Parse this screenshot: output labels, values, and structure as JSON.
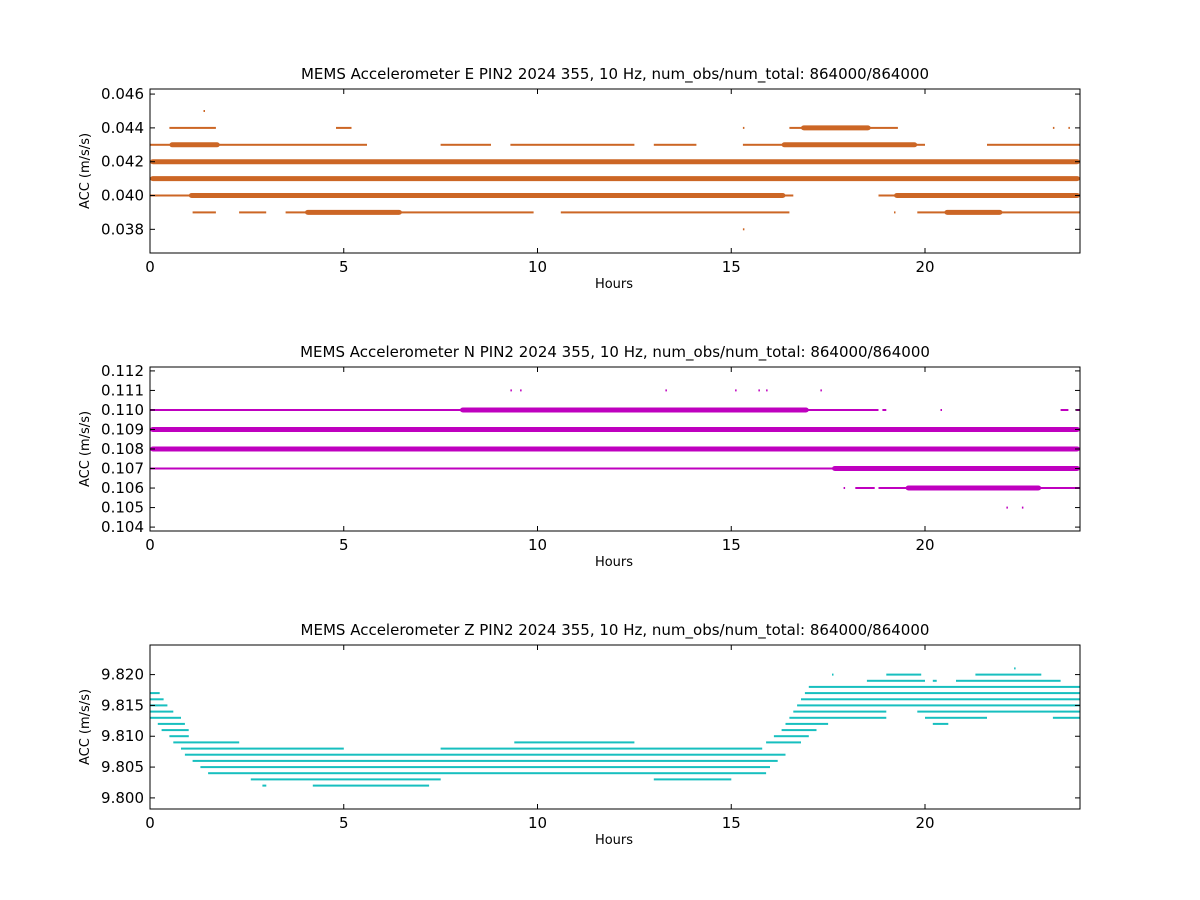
{
  "chart_data": [
    {
      "type": "scatter",
      "title": "MEMS Accelerometer E PIN2 2024 355, 10 Hz, num_obs/num_total: 864000/864000",
      "xlabel": "Hours",
      "ylabel": "ACC (m/s/s)",
      "xlim": [
        0,
        24
      ],
      "ylim": [
        0.0366,
        0.0463
      ],
      "xticks": [
        0,
        5,
        10,
        15,
        20
      ],
      "yticks": [
        0.038,
        0.04,
        0.042,
        0.044,
        0.046
      ],
      "ytick_labels": [
        "0.038",
        "0.040",
        "0.042",
        "0.044",
        "0.046"
      ],
      "color": "#cc6625",
      "series": [
        {
          "level": 0.045,
          "spans": [
            [
              1.38,
              1.4
            ]
          ],
          "dense": []
        },
        {
          "level": 0.044,
          "spans": [
            [
              0.5,
              1.7
            ],
            [
              4.8,
              5.2
            ],
            [
              15.3,
              15.32
            ],
            [
              16.5,
              19.3
            ],
            [
              23.3,
              23.32
            ],
            [
              23.7,
              23.72
            ]
          ],
          "dense": [
            [
              16.8,
              18.6
            ]
          ]
        },
        {
          "level": 0.043,
          "spans": [
            [
              0,
              5.6
            ],
            [
              7.5,
              8.8
            ],
            [
              9.3,
              12.5
            ],
            [
              13.0,
              14.1
            ],
            [
              15.3,
              20.0
            ],
            [
              21.6,
              24
            ]
          ],
          "dense": [
            [
              0.5,
              1.8
            ],
            [
              16.3,
              19.8
            ]
          ]
        },
        {
          "level": 0.042,
          "spans": [
            [
              0,
              24
            ]
          ],
          "dense": [
            [
              0,
              24
            ]
          ]
        },
        {
          "level": 0.041,
          "spans": [
            [
              0,
              24
            ]
          ],
          "dense": [
            [
              0,
              24
            ]
          ]
        },
        {
          "level": 0.04,
          "spans": [
            [
              0,
              16.6
            ],
            [
              18.8,
              24
            ]
          ],
          "dense": [
            [
              1.0,
              16.4
            ],
            [
              19.2,
              24
            ]
          ]
        },
        {
          "level": 0.039,
          "spans": [
            [
              1.1,
              1.7
            ],
            [
              2.3,
              3.0
            ],
            [
              3.5,
              9.9
            ],
            [
              10.6,
              16.5
            ],
            [
              19.2,
              19.22
            ],
            [
              19.8,
              24
            ]
          ],
          "dense": [
            [
              4.0,
              6.5
            ],
            [
              20.5,
              22.0
            ]
          ]
        },
        {
          "level": 0.038,
          "spans": [
            [
              15.3,
              15.32
            ]
          ],
          "dense": []
        }
      ]
    },
    {
      "type": "scatter",
      "title": "MEMS Accelerometer N PIN2 2024 355, 10 Hz, num_obs/num_total: 864000/864000",
      "xlabel": "Hours",
      "ylabel": "ACC (m/s/s)",
      "xlim": [
        0,
        24
      ],
      "ylim": [
        0.1038,
        0.1122
      ],
      "xticks": [
        0,
        5,
        10,
        15,
        20
      ],
      "yticks": [
        0.104,
        0.105,
        0.106,
        0.107,
        0.108,
        0.109,
        0.11,
        0.111,
        0.112
      ],
      "ytick_labels": [
        "0.104",
        "0.105",
        "0.106",
        "0.107",
        "0.108",
        "0.109",
        "0.110",
        "0.111",
        "0.112"
      ],
      "color": "#bf00bf",
      "series": [
        {
          "level": 0.111,
          "spans": [
            [
              9.3,
              9.32
            ],
            [
              9.55,
              9.57
            ],
            [
              13.3,
              13.32
            ],
            [
              15.1,
              15.12
            ],
            [
              15.7,
              15.72
            ],
            [
              15.9,
              15.92
            ],
            [
              17.3,
              17.32
            ]
          ],
          "dense": []
        },
        {
          "level": 0.11,
          "spans": [
            [
              0,
              18.8
            ],
            [
              18.9,
              19.0
            ],
            [
              20.4,
              20.42
            ],
            [
              23.5,
              23.7
            ],
            [
              23.9,
              24
            ]
          ],
          "dense": [
            [
              8.0,
              17.0
            ]
          ]
        },
        {
          "level": 0.109,
          "spans": [
            [
              0,
              24
            ]
          ],
          "dense": [
            [
              0,
              24
            ]
          ]
        },
        {
          "level": 0.108,
          "spans": [
            [
              0,
              24
            ]
          ],
          "dense": [
            [
              0,
              24
            ]
          ]
        },
        {
          "level": 0.107,
          "spans": [
            [
              0,
              24
            ]
          ],
          "dense": [
            [
              17.6,
              24
            ]
          ]
        },
        {
          "level": 0.106,
          "spans": [
            [
              17.9,
              17.92
            ],
            [
              18.2,
              18.7
            ],
            [
              18.8,
              24
            ]
          ],
          "dense": [
            [
              19.5,
              23.0
            ]
          ]
        },
        {
          "level": 0.105,
          "spans": [
            [
              22.1,
              22.12
            ],
            [
              22.5,
              22.52
            ]
          ],
          "dense": []
        }
      ]
    },
    {
      "type": "scatter",
      "title": "MEMS Accelerometer Z PIN2 2024 355, 10 Hz, num_obs/num_total: 864000/864000",
      "xlabel": "Hours",
      "ylabel": "ACC (m/s/s)",
      "xlim": [
        0,
        24
      ],
      "ylim": [
        9.7982,
        9.8248
      ],
      "xticks": [
        0,
        5,
        10,
        15,
        20
      ],
      "yticks": [
        9.8,
        9.805,
        9.81,
        9.815,
        9.82
      ],
      "ytick_labels": [
        "9.800",
        "9.805",
        "9.810",
        "9.815",
        "9.820"
      ],
      "color": "#17bfbf",
      "series": [
        {
          "level": 9.821,
          "spans": [
            [
              22.3,
              22.32
            ]
          ],
          "dense": []
        },
        {
          "level": 9.82,
          "spans": [
            [
              17.6,
              17.62
            ],
            [
              19.0,
              19.9
            ],
            [
              21.3,
              23.0
            ]
          ],
          "dense": []
        },
        {
          "level": 9.819,
          "spans": [
            [
              18.5,
              20.0
            ],
            [
              20.2,
              20.3
            ],
            [
              20.8,
              23.5
            ]
          ],
          "dense": []
        },
        {
          "level": 9.818,
          "spans": [
            [
              17.0,
              24
            ]
          ],
          "dense": []
        },
        {
          "level": 9.817,
          "spans": [
            [
              0,
              0.25
            ],
            [
              16.9,
              24
            ]
          ],
          "dense": []
        },
        {
          "level": 9.816,
          "spans": [
            [
              0,
              0.35
            ],
            [
              16.8,
              24
            ]
          ],
          "dense": []
        },
        {
          "level": 9.815,
          "spans": [
            [
              0,
              0.45
            ],
            [
              16.7,
              24
            ]
          ],
          "dense": []
        },
        {
          "level": 9.814,
          "spans": [
            [
              0,
              0.6
            ],
            [
              16.6,
              19.0
            ],
            [
              19.8,
              24
            ]
          ],
          "dense": []
        },
        {
          "level": 9.813,
          "spans": [
            [
              0,
              0.8
            ],
            [
              16.5,
              19.0
            ],
            [
              20.0,
              21.6
            ],
            [
              23.3,
              24
            ]
          ],
          "dense": []
        },
        {
          "level": 9.812,
          "spans": [
            [
              0.2,
              0.9
            ],
            [
              16.4,
              17.5
            ],
            [
              20.2,
              20.6
            ]
          ],
          "dense": []
        },
        {
          "level": 9.811,
          "spans": [
            [
              0.3,
              1.0
            ],
            [
              16.3,
              17.2
            ]
          ],
          "dense": []
        },
        {
          "level": 9.81,
          "spans": [
            [
              0.5,
              1.0
            ],
            [
              16.1,
              17.0
            ]
          ],
          "dense": []
        },
        {
          "level": 9.809,
          "spans": [
            [
              0.6,
              2.3
            ],
            [
              9.4,
              12.5
            ],
            [
              15.9,
              16.8
            ]
          ],
          "dense": []
        },
        {
          "level": 9.808,
          "spans": [
            [
              0.8,
              5.0
            ],
            [
              7.5,
              15.8
            ]
          ],
          "dense": []
        },
        {
          "level": 9.807,
          "spans": [
            [
              0.9,
              16.4
            ]
          ],
          "dense": []
        },
        {
          "level": 9.806,
          "spans": [
            [
              1.1,
              16.2
            ]
          ],
          "dense": []
        },
        {
          "level": 9.805,
          "spans": [
            [
              1.3,
              16.0
            ]
          ],
          "dense": []
        },
        {
          "level": 9.804,
          "spans": [
            [
              1.5,
              15.9
            ]
          ],
          "dense": []
        },
        {
          "level": 9.803,
          "spans": [
            [
              2.6,
              7.5
            ],
            [
              13.0,
              15.0
            ]
          ],
          "dense": []
        },
        {
          "level": 9.802,
          "spans": [
            [
              2.9,
              3.0
            ],
            [
              4.2,
              7.2
            ]
          ],
          "dense": []
        }
      ]
    }
  ]
}
